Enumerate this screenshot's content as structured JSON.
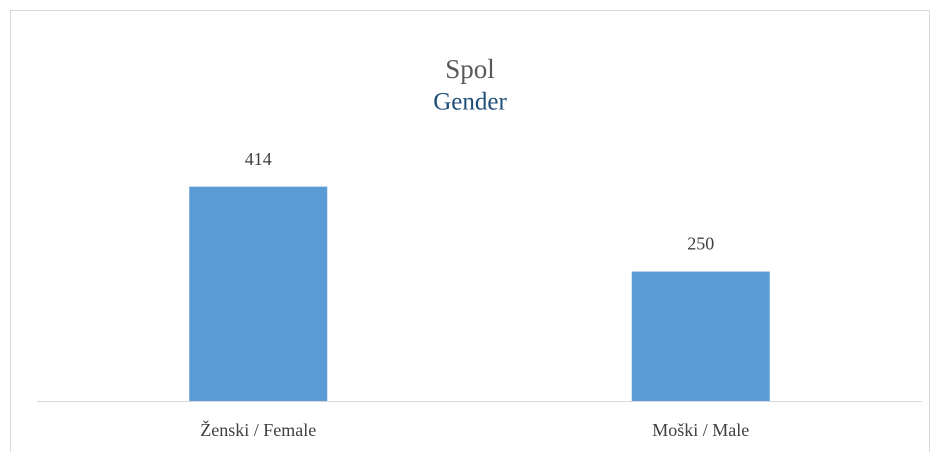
{
  "chart_data": {
    "type": "bar",
    "title": "Spol",
    "subtitle": "Gender",
    "categories": [
      "Ženski / Female",
      "Moški / Male"
    ],
    "values": [
      414,
      250
    ],
    "color": "#5b9bd5",
    "ylim": [
      0,
      450
    ]
  }
}
